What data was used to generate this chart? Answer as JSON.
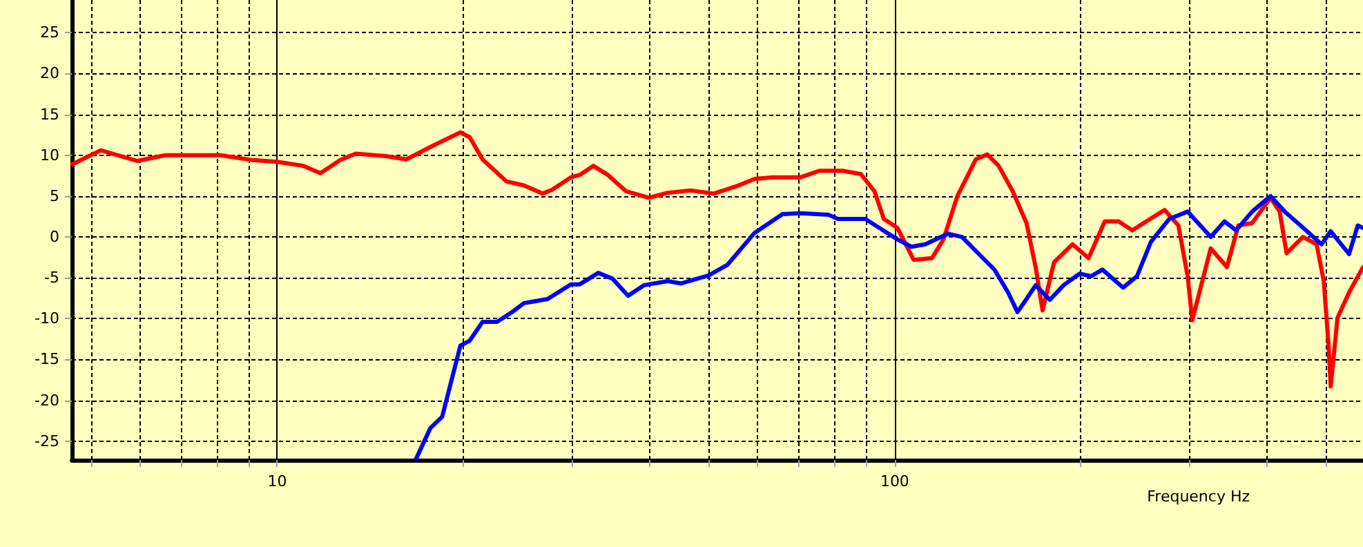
{
  "chart_data": {
    "type": "line",
    "xlabel": "Frequency Hz",
    "log": "x",
    "grid": true,
    "marker": "none",
    "line_style": "solid",
    "xlim": [
      4.65,
      573
    ],
    "ylim": [
      -27.3,
      29
    ],
    "xticks": [
      {
        "value": 5,
        "label": null
      },
      {
        "value": 6,
        "label": null
      },
      {
        "value": 7,
        "label": null
      },
      {
        "value": 8,
        "label": null
      },
      {
        "value": 9,
        "label": null
      },
      10,
      {
        "value": 20,
        "label": null
      },
      {
        "value": 30,
        "label": null
      },
      {
        "value": 40,
        "label": null
      },
      {
        "value": 50,
        "label": null
      },
      {
        "value": 60,
        "label": null
      },
      {
        "value": 70,
        "label": null
      },
      {
        "value": 80,
        "label": null
      },
      {
        "value": 90,
        "label": null
      },
      100,
      {
        "value": 200,
        "label": null
      },
      {
        "value": 300,
        "label": null
      },
      {
        "value": 400,
        "label": null
      },
      {
        "value": 500,
        "label": null
      }
    ],
    "yticks": [
      -25,
      -20,
      -15,
      -10,
      -5,
      0,
      5,
      10,
      15,
      20,
      25
    ],
    "series": [
      {
        "color": "#ff0000",
        "x": [
          4.66,
          5.18,
          5.94,
          6.59,
          8.09,
          9.13,
          10.0,
          11.03,
          11.75,
          12.65,
          13.4,
          15.0,
          16.2,
          17.8,
          19.8,
          20.5,
          21.5,
          23.5,
          25.1,
          26.9,
          27.9,
          29.9,
          30.9,
          32.5,
          34.3,
          36.7,
          40.0,
          42.9,
          46.7,
          50.9,
          55.4,
          59.3,
          63.5,
          70.4,
          75.5,
          82.3,
          88.1,
          92.7,
          96.0,
          101,
          107.3,
          114.9,
          119.9,
          126.3,
          135.3,
          141.2,
          147.3,
          155.2,
          163.4,
          169.1,
          173.5,
          181.1,
          194.0,
          206.0,
          218.8,
          230.3,
          242.5,
          255.5,
          273.5,
          287.9,
          298.0,
          303.2,
          324.8,
          345.0,
          360.0,
          379.0,
          406,
          420,
          431,
          458,
          482,
          495,
          504,
          508,
          521,
          544,
          573
        ],
        "values": [
          8.9,
          10.6,
          9.3,
          10.0,
          10.0,
          9.4,
          9.2,
          8.7,
          7.8,
          9.4,
          10.2,
          9.9,
          9.5,
          11.1,
          12.8,
          12.2,
          9.5,
          6.8,
          6.3,
          5.3,
          5.8,
          7.3,
          7.6,
          8.7,
          7.6,
          5.6,
          4.8,
          5.4,
          5.7,
          5.3,
          6.2,
          7.1,
          7.3,
          7.3,
          8.1,
          8.1,
          7.7,
          5.6,
          2.2,
          1.1,
          -2.8,
          -2.6,
          -0.3,
          5.0,
          9.5,
          10.1,
          8.7,
          5.6,
          1.7,
          -3.7,
          -9.0,
          -3.1,
          -0.9,
          -2.6,
          1.9,
          1.9,
          0.8,
          1.9,
          3.3,
          1.4,
          -4.8,
          -10.2,
          -1.4,
          -3.7,
          1.4,
          1.7,
          4.8,
          3.1,
          -2.0,
          0.0,
          -0.9,
          -5.4,
          -13.3,
          -18.3,
          -9.9,
          -6.8,
          -3.7
        ]
      },
      {
        "color": "#0000ff",
        "x": [
          16.8,
          17.7,
          18.5,
          19.8,
          20.5,
          21.5,
          22.7,
          23.9,
          25.1,
          27.4,
          29.9,
          30.9,
          33.1,
          34.9,
          37.0,
          39.3,
          42.9,
          45.1,
          50.0,
          53.6,
          59.3,
          65.8,
          70.4,
          78.2,
          80.9,
          89.6,
          101,
          106.4,
          112.0,
          122.0,
          128.5,
          137.7,
          145.0,
          152.6,
          158.0,
          163.4,
          169.1,
          178.3,
          187.7,
          199.2,
          208.0,
          216.9,
          234.3,
          246.7,
          259.9,
          278.2,
          298,
          324.8,
          342,
          357,
          379,
          406,
          428,
          454,
          491,
          508,
          544,
          562,
          573
        ],
        "values": [
          -27.1,
          -23.4,
          -22.0,
          -13.3,
          -12.7,
          -10.4,
          -10.4,
          -9.3,
          -8.1,
          -7.6,
          -5.8,
          -5.8,
          -4.4,
          -5.1,
          -7.2,
          -5.9,
          -5.4,
          -5.7,
          -4.7,
          -3.4,
          0.5,
          2.8,
          2.9,
          2.7,
          2.2,
          2.2,
          -0.3,
          -1.2,
          -0.9,
          0.4,
          0.0,
          -2.3,
          -4.0,
          -6.8,
          -9.2,
          -7.6,
          -5.9,
          -7.7,
          -5.9,
          -4.5,
          -4.8,
          -4.0,
          -6.2,
          -4.8,
          -0.6,
          2.2,
          3.1,
          0.0,
          1.9,
          0.8,
          3.1,
          5.0,
          3.1,
          1.4,
          -0.9,
          0.7,
          -2.1,
          1.4,
          1.1
        ]
      }
    ]
  }
}
